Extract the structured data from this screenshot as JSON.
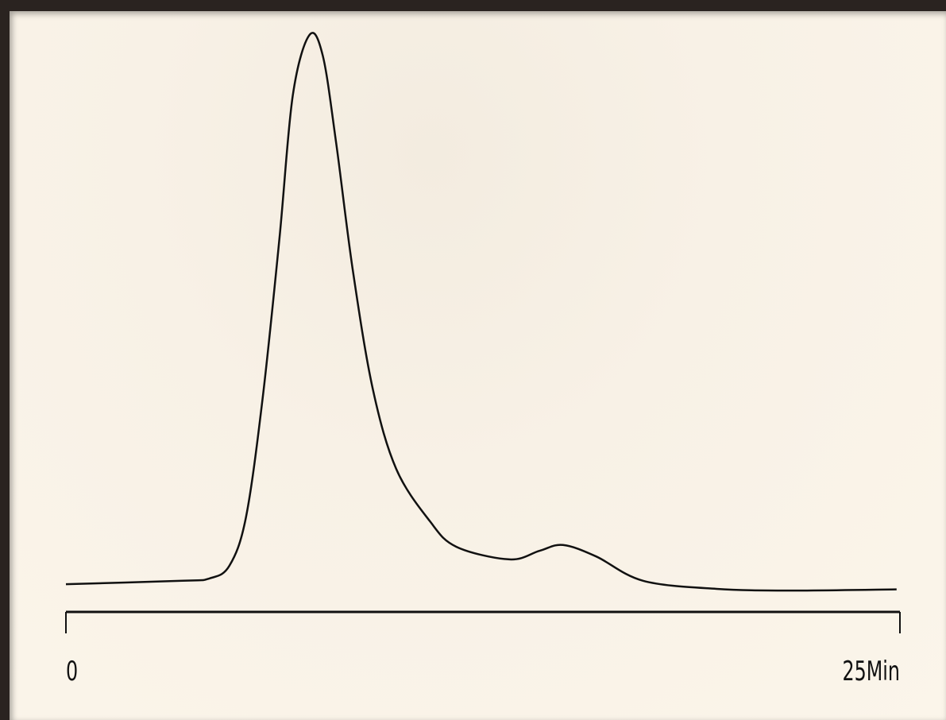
{
  "chart_data": {
    "type": "line",
    "x": [
      0,
      3.5,
      4.3,
      4.9,
      5.4,
      5.9,
      6.4,
      6.8,
      7.3,
      7.7,
      8.1,
      8.6,
      9.2,
      9.9,
      10.9,
      11.7,
      13.3,
      14.2,
      14.9,
      15.9,
      17.3,
      19.5,
      21.8,
      24.9
    ],
    "series": [
      {
        "color": "#111111",
        "values": [
          4.8,
          5.4,
          5.8,
          8.0,
          16.5,
          37.2,
          64.7,
          89.5,
          100,
          96.4,
          81.3,
          59.2,
          38.6,
          24.8,
          15.8,
          11.3,
          9.1,
          10.6,
          11.6,
          9.6,
          5.4,
          4.0,
          3.7,
          3.9
        ]
      }
    ],
    "xlim": [
      0,
      25
    ],
    "xticks": [
      0,
      {
        "value": 25,
        "label": "25Min"
      }
    ],
    "ylim": [
      0,
      100
    ]
  }
}
